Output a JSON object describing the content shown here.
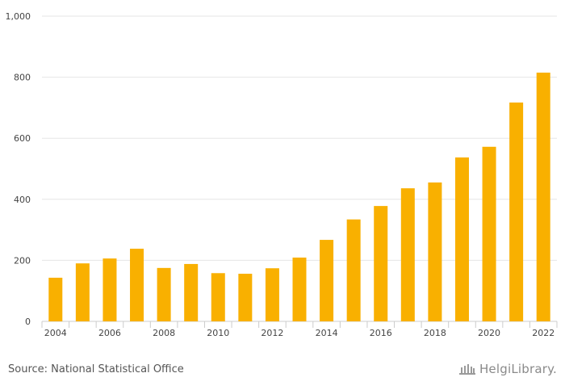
{
  "chart_data": {
    "type": "bar",
    "title": "",
    "xlabel": "",
    "ylabel": "",
    "categories": [
      "2004",
      "2005",
      "2006",
      "2007",
      "2008",
      "2009",
      "2010",
      "2011",
      "2012",
      "2013",
      "2014",
      "2015",
      "2016",
      "2017",
      "2018",
      "2019",
      "2020",
      "2021",
      "2022"
    ],
    "values": [
      143,
      190,
      206,
      238,
      175,
      188,
      158,
      156,
      174,
      209,
      267,
      334,
      378,
      436,
      455,
      537,
      572,
      717,
      815
    ],
    "x_tick_labels": [
      "2004",
      "2006",
      "2008",
      "2010",
      "2012",
      "2014",
      "2016",
      "2018",
      "2020",
      "2022"
    ],
    "y_tick_labels": [
      "0",
      "200",
      "400",
      "600",
      "800",
      "1,000"
    ],
    "ylim": [
      0,
      1000
    ],
    "grid": true,
    "bar_color": "#f9b000"
  },
  "footer": {
    "source": "Source: National Statistical Office",
    "logo_text": "HelgiLibrary."
  }
}
